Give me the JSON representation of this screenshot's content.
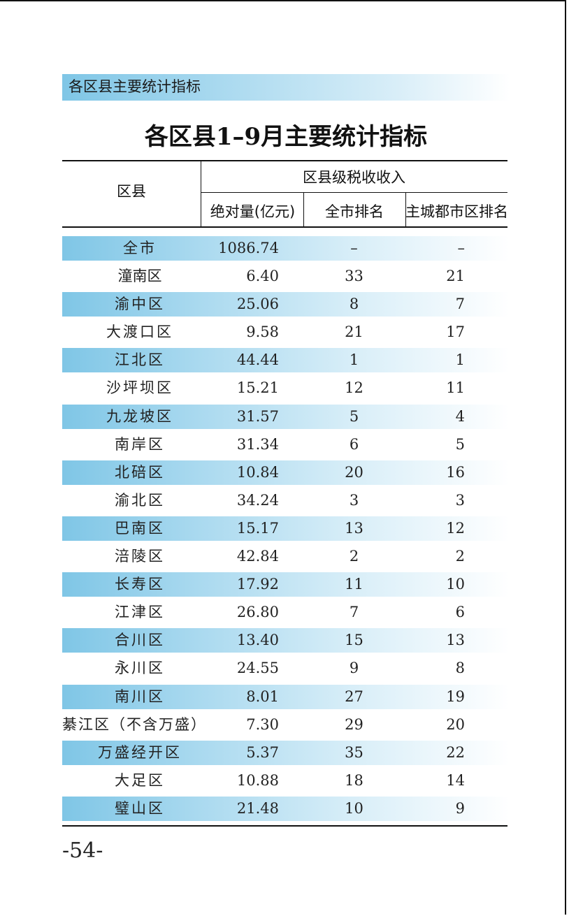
{
  "section_label": "各区县主要统计指标",
  "title": "各区县1–9月主要统计指标",
  "headers": {
    "district": "区县",
    "group": "区县级税收收入",
    "absolute": "绝对量(亿元)",
    "city_rank": "全市排名",
    "main_rank": "主城都市区排名"
  },
  "rows": [
    {
      "name": "全市",
      "abs": "1086.74",
      "city": "–",
      "main": "–"
    },
    {
      "name": "潼南区",
      "abs": "6.40",
      "city": "33",
      "main": "21"
    },
    {
      "name": "渝中区",
      "abs": "25.06",
      "city": "8",
      "main": "7"
    },
    {
      "name": "大渡口区",
      "abs": "9.58",
      "city": "21",
      "main": "17"
    },
    {
      "name": "江北区",
      "abs": "44.44",
      "city": "1",
      "main": "1"
    },
    {
      "name": "沙坪坝区",
      "abs": "15.21",
      "city": "12",
      "main": "11"
    },
    {
      "name": "九龙坡区",
      "abs": "31.57",
      "city": "5",
      "main": "4"
    },
    {
      "name": "南岸区",
      "abs": "31.34",
      "city": "6",
      "main": "5"
    },
    {
      "name": "北碚区",
      "abs": "10.84",
      "city": "20",
      "main": "16"
    },
    {
      "name": "渝北区",
      "abs": "34.24",
      "city": "3",
      "main": "3"
    },
    {
      "name": "巴南区",
      "abs": "15.17",
      "city": "13",
      "main": "12"
    },
    {
      "name": "涪陵区",
      "abs": "42.84",
      "city": "2",
      "main": "2"
    },
    {
      "name": "长寿区",
      "abs": "17.92",
      "city": "11",
      "main": "10"
    },
    {
      "name": "江津区",
      "abs": "26.80",
      "city": "7",
      "main": "6"
    },
    {
      "name": "合川区",
      "abs": "13.40",
      "city": "15",
      "main": "13"
    },
    {
      "name": "永川区",
      "abs": "24.55",
      "city": "9",
      "main": "8"
    },
    {
      "name": "南川区",
      "abs": "8.01",
      "city": "27",
      "main": "19"
    },
    {
      "name": "綦江区（不含万盛）",
      "abs": "7.30",
      "city": "29",
      "main": "20"
    },
    {
      "name": "万盛经开区",
      "abs": "5.37",
      "city": "35",
      "main": "22"
    },
    {
      "name": "大足区",
      "abs": "10.88",
      "city": "18",
      "main": "14"
    },
    {
      "name": "璧山区",
      "abs": "21.48",
      "city": "10",
      "main": "9"
    }
  ],
  "page_number": "-54-"
}
